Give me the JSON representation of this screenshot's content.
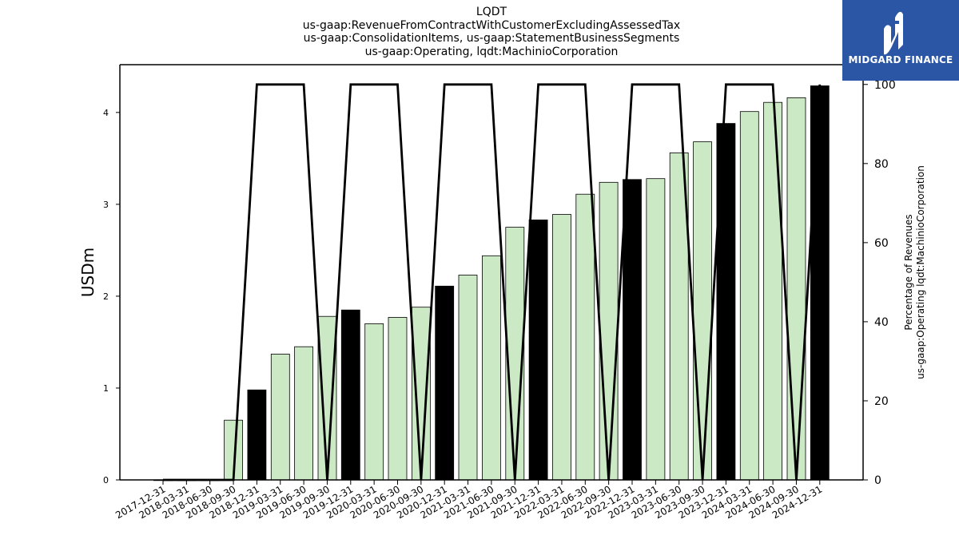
{
  "title": {
    "line1": "LQDT",
    "line2": "us-gaap:RevenueFromContractWithCustomerExcludingAssessedTax",
    "line3": "us-gaap:ConsolidationItems, us-gaap:StatementBusinessSegments",
    "line4": "us-gaap:Operating, lqdt:MachinioCorporation"
  },
  "brand": {
    "name": "MIDGARD FINANCE",
    "color": "#2a56a5"
  },
  "colors": {
    "quarter_bar": "#cce9c6",
    "annual_bar": "#000000",
    "line": "#000000"
  },
  "chart_data": {
    "type": "bar",
    "categories": [
      "2017-12-31",
      "2018-03-31",
      "2018-06-30",
      "2018-09-30",
      "2018-12-31",
      "2019-03-31",
      "2019-06-30",
      "2019-09-30",
      "2019-12-31",
      "2020-03-31",
      "2020-06-30",
      "2020-09-30",
      "2020-12-31",
      "2021-03-31",
      "2021-06-30",
      "2021-09-30",
      "2021-12-31",
      "2022-03-31",
      "2022-06-30",
      "2022-09-30",
      "2022-12-31",
      "2023-03-31",
      "2023-06-30",
      "2023-09-30",
      "2023-12-31",
      "2024-03-31",
      "2024-06-30",
      "2024-09-30",
      "2024-12-31"
    ],
    "series": [
      {
        "axis": "left",
        "type": "bar",
        "values": [
          0.0,
          0.0,
          0.0,
          0.65,
          0.98,
          1.37,
          1.45,
          1.78,
          1.85,
          1.7,
          1.77,
          1.88,
          2.11,
          2.23,
          2.44,
          2.75,
          2.83,
          2.89,
          3.11,
          3.24,
          3.27,
          3.28,
          3.56,
          3.68,
          3.88,
          4.01,
          4.11,
          4.16,
          4.29
        ],
        "annual": [
          false,
          false,
          false,
          false,
          true,
          false,
          false,
          false,
          true,
          false,
          false,
          false,
          true,
          false,
          false,
          false,
          true,
          false,
          false,
          false,
          true,
          false,
          false,
          false,
          true,
          false,
          false,
          false,
          true
        ]
      },
      {
        "axis": "right",
        "type": "line",
        "values": [
          0,
          0,
          0,
          0,
          100,
          100,
          100,
          0,
          100,
          100,
          100,
          0,
          100,
          100,
          100,
          0,
          100,
          100,
          100,
          0,
          100,
          100,
          100,
          0,
          100,
          100,
          100,
          0,
          100
        ]
      }
    ],
    "ylabel": "USDm",
    "ylabel_right": [
      "Percentage of Revenues",
      "us-gaap:Operating lqdt:MachinioCorporation"
    ],
    "ylim": [
      0,
      4.52
    ],
    "ylim_right": [
      0,
      105
    ],
    "yticks": [
      "0",
      "1",
      "2",
      "3",
      "4"
    ],
    "yticks_right": [
      "0",
      "20",
      "40",
      "60",
      "80",
      "100"
    ]
  }
}
